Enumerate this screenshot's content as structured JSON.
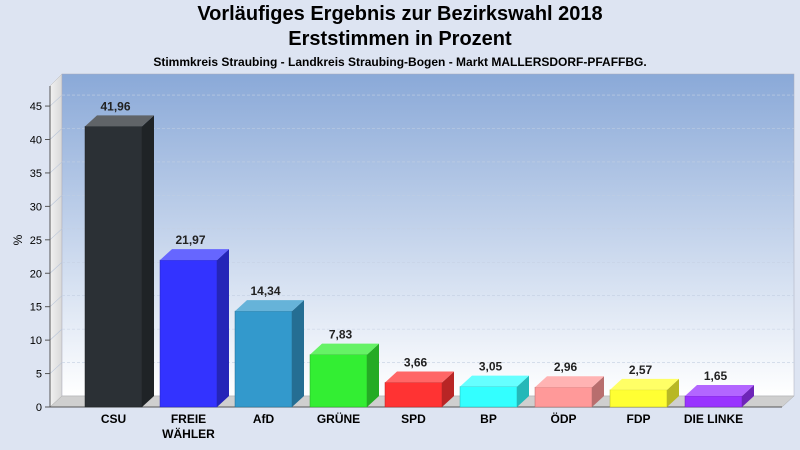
{
  "chart_data": {
    "type": "bar",
    "title": "Vorläufiges Ergebnis zur Bezirkswahl 2018",
    "subtitle": "Erststimmen in Prozent",
    "caption": "Stimmkreis Straubing - Landkreis Straubing-Bogen - Markt MALLERSDORF-PFAFFBG.",
    "ylabel": "%",
    "ylim": [
      0,
      48
    ],
    "yticks": [
      0,
      5,
      10,
      15,
      20,
      25,
      30,
      35,
      40,
      45
    ],
    "grid": true,
    "categories": [
      [
        "CSU"
      ],
      [
        "FREIE",
        "WÄHLER"
      ],
      [
        "AfD"
      ],
      [
        "GRÜNE"
      ],
      [
        "SPD"
      ],
      [
        "BP"
      ],
      [
        "ÖDP"
      ],
      [
        "FDP"
      ],
      [
        "DIE LINKE"
      ]
    ],
    "values": [
      41.96,
      21.97,
      14.34,
      7.83,
      3.66,
      3.05,
      2.96,
      2.57,
      1.65
    ],
    "value_labels": [
      "41,96",
      "21,97",
      "14,34",
      "7,83",
      "3,66",
      "3,05",
      "2,96",
      "2,57",
      "1,65"
    ],
    "colors": [
      "#2b3035",
      "#3333ff",
      "#3399cc",
      "#33ee33",
      "#ff3333",
      "#33ffff",
      "#ff9999",
      "#ffff33",
      "#9933ff"
    ]
  }
}
